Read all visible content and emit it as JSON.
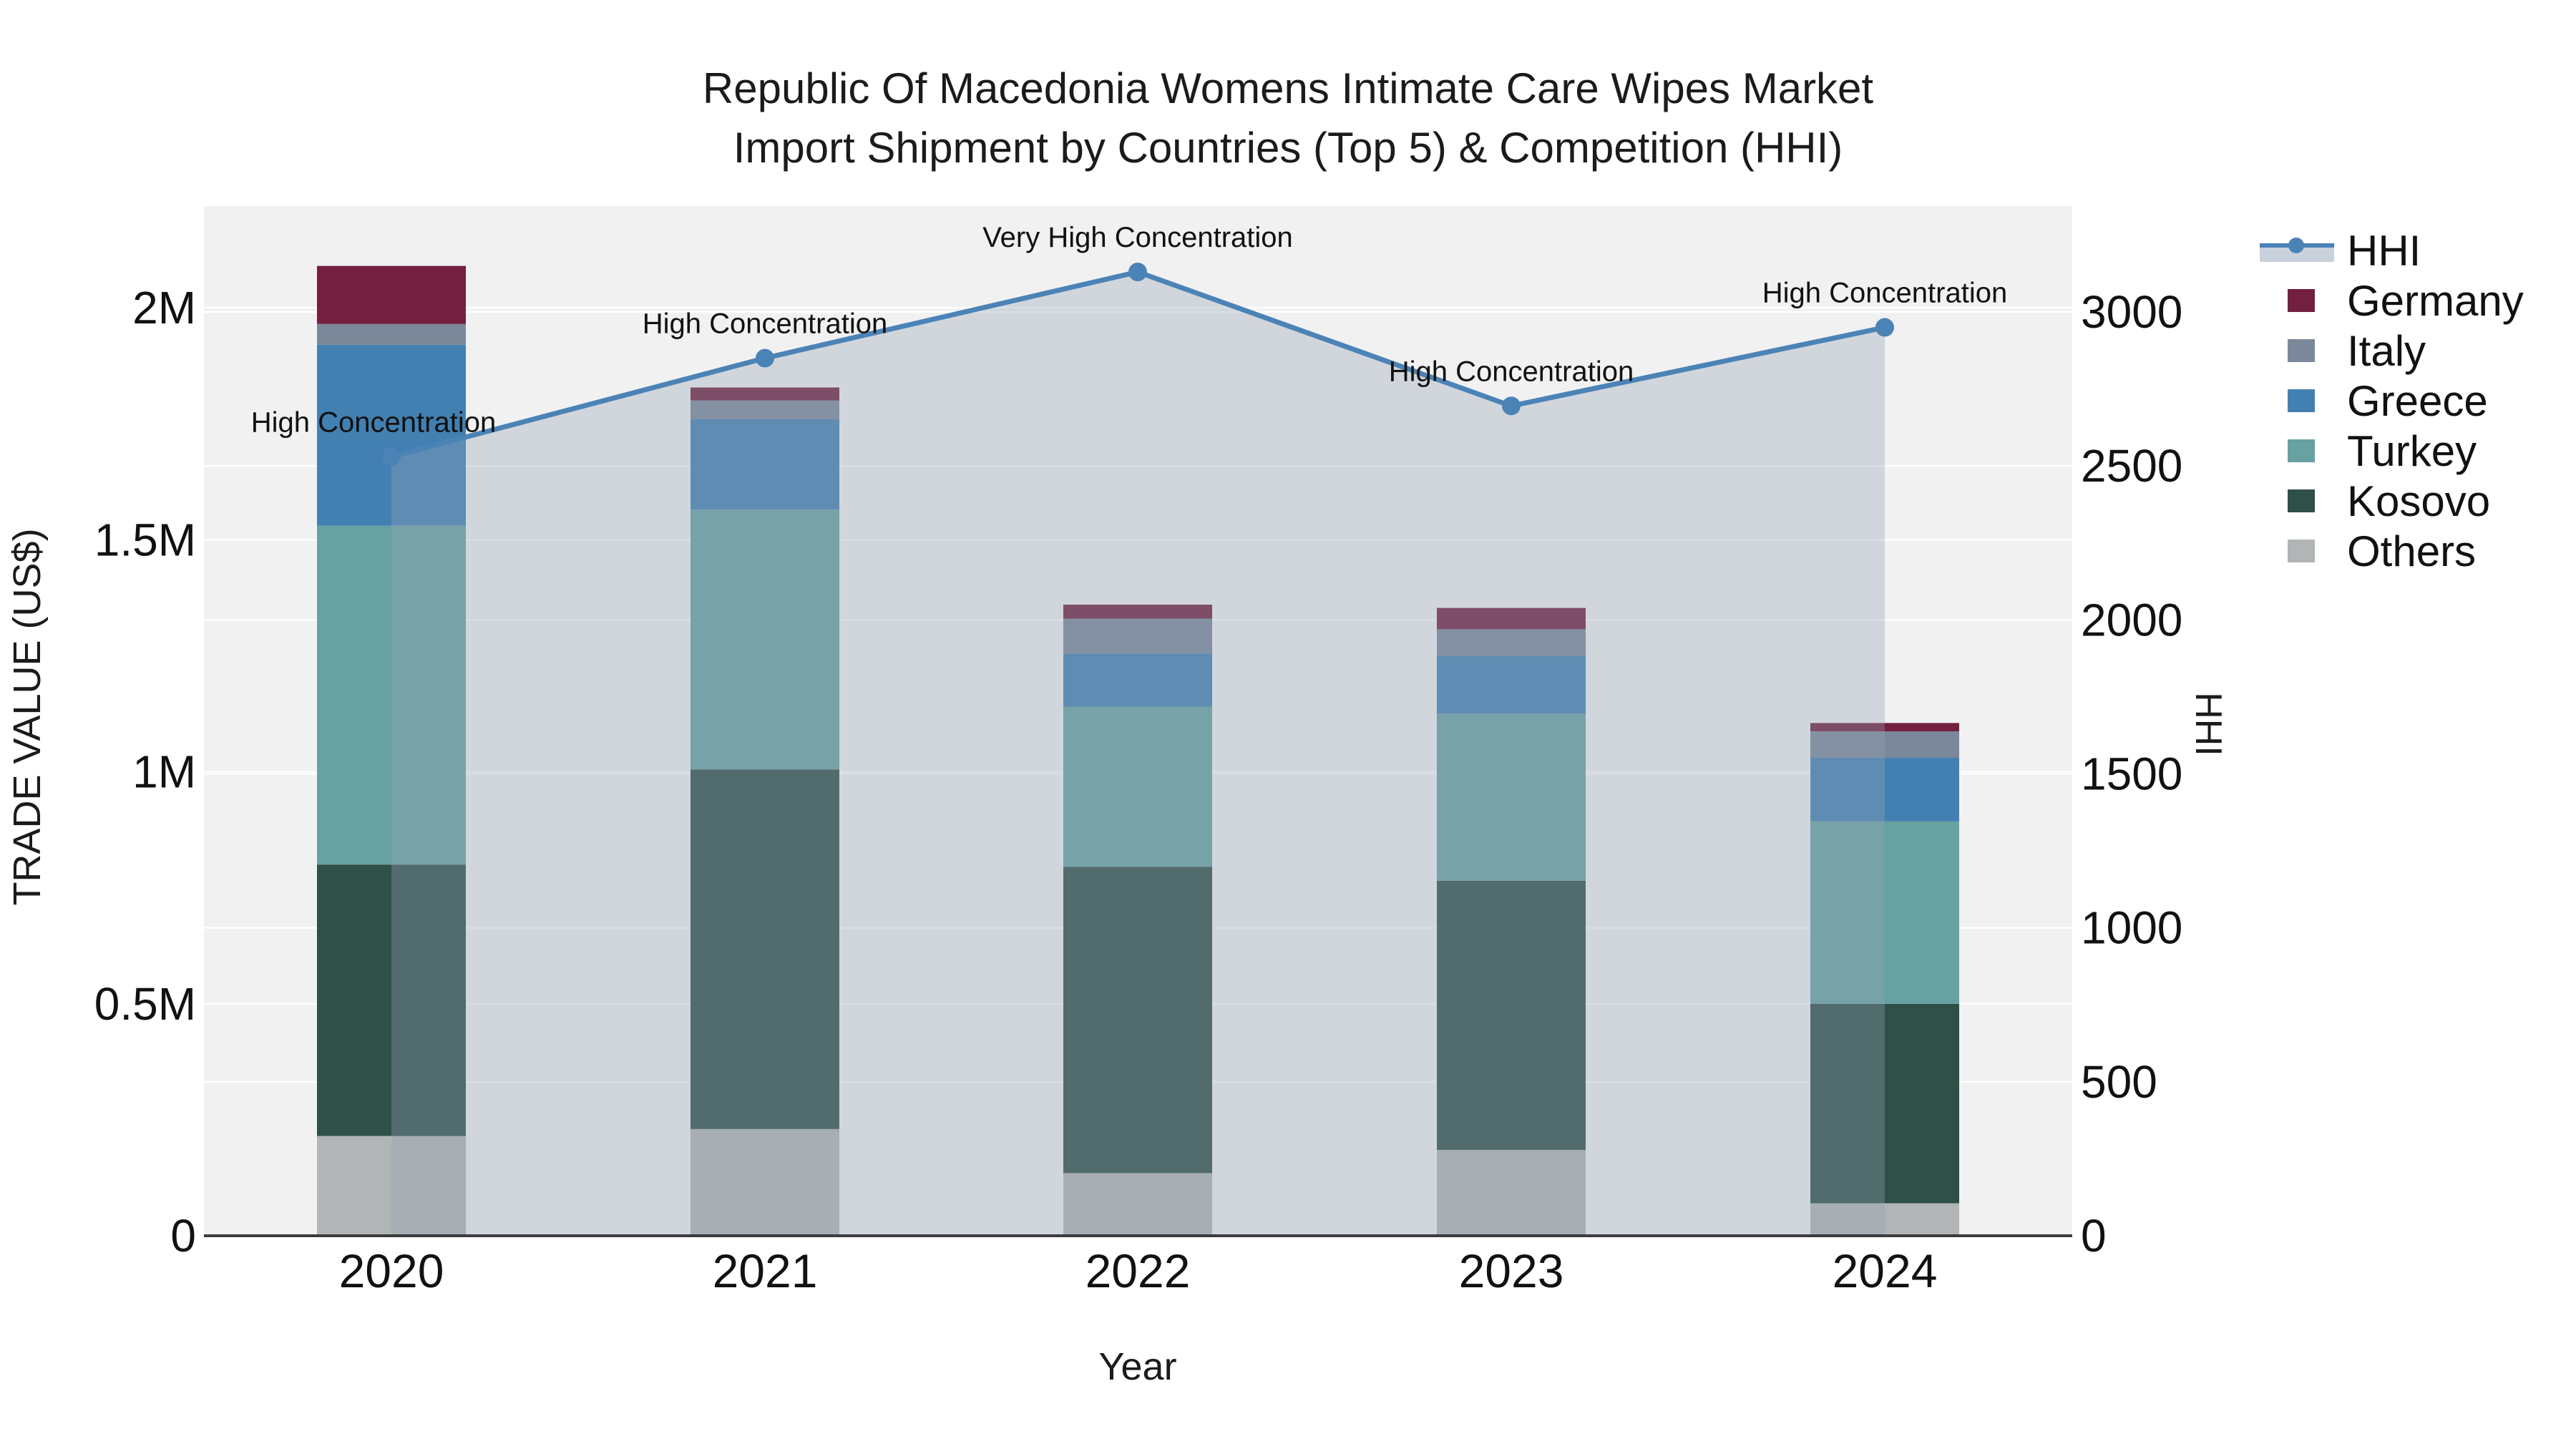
{
  "title": {
    "line1": "Republic Of Macedonia Womens Intimate Care Wipes Market",
    "line2": "Import Shipment by Countries (Top 5) & Competition (HHI)"
  },
  "axes": {
    "left_title": "TRADE VALUE (US$)",
    "right_title": "HHI",
    "x_title": "Year"
  },
  "chart_data": {
    "type": "combo",
    "subtypes": [
      "stacked-bar",
      "line-with-area-fill"
    ],
    "title_line1": "Republic Of Macedonia Womens Intimate Care Wipes Market",
    "title_line2": "Import Shipment by Countries (Top 5) & Competition (HHI)",
    "xlabel": "Year",
    "ylabel_left": "TRADE VALUE (US$)",
    "ylabel_right": "HHI",
    "categories": [
      "2020",
      "2021",
      "2022",
      "2023",
      "2024"
    ],
    "bar_series_stack_order_bottom_to_top": [
      {
        "name": "Others",
        "color": "#b1b5b6",
        "values": [
          215000,
          230000,
          135000,
          185000,
          70000
        ]
      },
      {
        "name": "Kosovo",
        "color": "#2f4f49",
        "values": [
          585000,
          775000,
          660000,
          580000,
          430000
        ]
      },
      {
        "name": "Turkey",
        "color": "#67a1a1",
        "values": [
          730000,
          560000,
          345000,
          360000,
          393000
        ]
      },
      {
        "name": "Greece",
        "color": "#4380b2",
        "values": [
          390000,
          195000,
          115000,
          125000,
          137000
        ]
      },
      {
        "name": "Italy",
        "color": "#7a8899",
        "values": [
          45000,
          40000,
          75000,
          57000,
          57000
        ]
      },
      {
        "name": "Germany",
        "color": "#721f40",
        "values": [
          125000,
          28000,
          30000,
          46000,
          18000
        ]
      }
    ],
    "line_series": {
      "name": "HHI",
      "color": "#4b83b6",
      "fill_color": "rgba(150,162,180,0.35)",
      "values": [
        2530,
        2850,
        3130,
        2695,
        2950
      ]
    },
    "annotations": [
      "High Concentration",
      "High Concentration",
      "Very High Concentration",
      "High Concentration",
      "High Concentration"
    ],
    "y_left": {
      "range": [
        0,
        2000000
      ],
      "ticks": [
        0,
        500000,
        1000000,
        1500000,
        2000000
      ],
      "tick_labels": [
        "0",
        "0.5M",
        "1M",
        "1.5M",
        "2M"
      ]
    },
    "y_right": {
      "range": [
        0,
        3000
      ],
      "ticks": [
        0,
        500,
        1000,
        1500,
        2000,
        2500,
        3000
      ],
      "tick_labels": [
        "0",
        "500",
        "1000",
        "1500",
        "2000",
        "2500",
        "3000"
      ]
    },
    "legend_order": [
      "HHI",
      "Germany",
      "Italy",
      "Greece",
      "Turkey",
      "Kosovo",
      "Others"
    ],
    "grid": true,
    "plot_bg": "#f1f1f2",
    "grid_color": "#ffffff",
    "axis_line_color": "#3c3c3c",
    "text_color": "#111111"
  }
}
